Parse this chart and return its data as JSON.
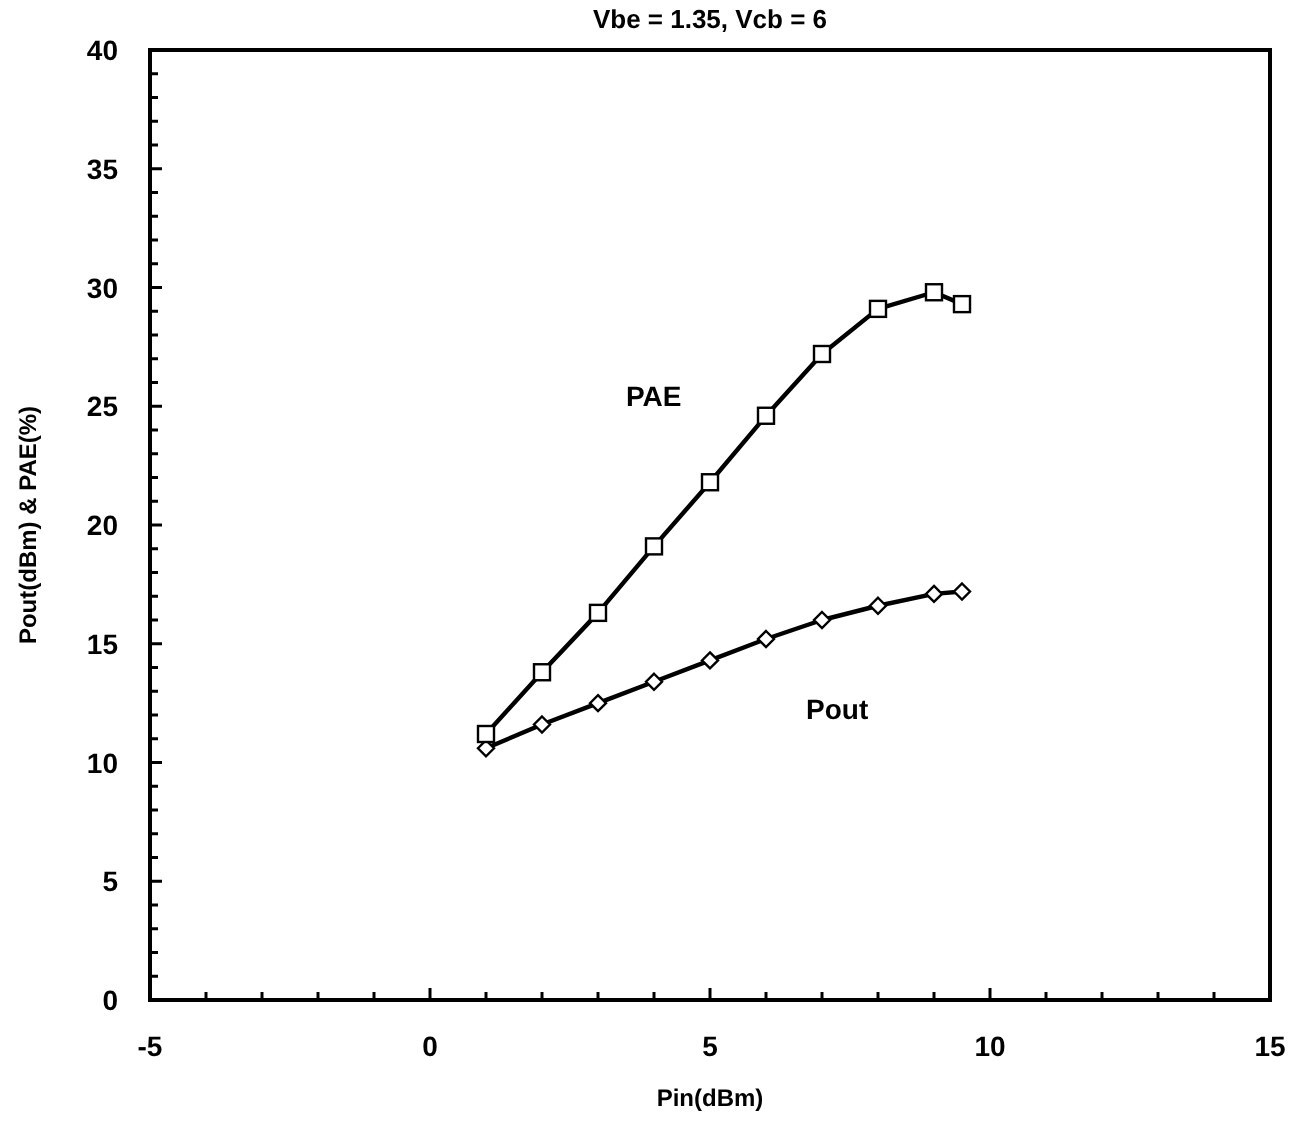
{
  "chart_data": {
    "type": "line",
    "title": "Vbe = 1.35,  Vcb = 6",
    "xlabel": "Pin(dBm)",
    "ylabel": "Pout(dBm) & PAE(%)",
    "xlim": [
      -5,
      15
    ],
    "ylim": [
      0,
      40
    ],
    "xticks": [
      -5,
      {
        "value": -4,
        "label": null
      },
      {
        "value": -3,
        "label": null
      },
      {
        "value": -2,
        "label": null
      },
      {
        "value": -1,
        "label": null
      },
      0,
      {
        "value": 1,
        "label": null
      },
      {
        "value": 2,
        "label": null
      },
      {
        "value": 3,
        "label": null
      },
      {
        "value": 4,
        "label": null
      },
      5,
      {
        "value": 6,
        "label": null
      },
      {
        "value": 7,
        "label": null
      },
      {
        "value": 8,
        "label": null
      },
      {
        "value": 9,
        "label": null
      },
      10,
      {
        "value": 11,
        "label": null
      },
      {
        "value": 12,
        "label": null
      },
      {
        "value": 13,
        "label": null
      },
      {
        "value": 14,
        "label": null
      },
      15
    ],
    "yticks": [
      0,
      {
        "value": 1,
        "label": null
      },
      {
        "value": 2,
        "label": null
      },
      {
        "value": 3,
        "label": null
      },
      {
        "value": 4,
        "label": null
      },
      5,
      {
        "value": 6,
        "label": null
      },
      {
        "value": 7,
        "label": null
      },
      {
        "value": 8,
        "label": null
      },
      {
        "value": 9,
        "label": null
      },
      10,
      {
        "value": 11,
        "label": null
      },
      {
        "value": 12,
        "label": null
      },
      {
        "value": 13,
        "label": null
      },
      {
        "value": 14,
        "label": null
      },
      15,
      {
        "value": 16,
        "label": null
      },
      {
        "value": 17,
        "label": null
      },
      {
        "value": 18,
        "label": null
      },
      {
        "value": 19,
        "label": null
      },
      20,
      {
        "value": 21,
        "label": null
      },
      {
        "value": 22,
        "label": null
      },
      {
        "value": 23,
        "label": null
      },
      {
        "value": 24,
        "label": null
      },
      25,
      {
        "value": 26,
        "label": null
      },
      {
        "value": 27,
        "label": null
      },
      {
        "value": 28,
        "label": null
      },
      {
        "value": 29,
        "label": null
      },
      30,
      {
        "value": 31,
        "label": null
      },
      {
        "value": 32,
        "label": null
      },
      {
        "value": 33,
        "label": null
      },
      {
        "value": 34,
        "label": null
      },
      35,
      {
        "value": 36,
        "label": null
      },
      {
        "value": 37,
        "label": null
      },
      {
        "value": 38,
        "label": null
      },
      {
        "value": 39,
        "label": null
      },
      40
    ],
    "grid": false,
    "line_style": "solid",
    "series": [
      {
        "name": "PAE",
        "color": "#000000",
        "marker": "square",
        "x": [
          1,
          2,
          3,
          4,
          5,
          6,
          7,
          8,
          9,
          9.5
        ],
        "values": [
          11.2,
          13.8,
          16.3,
          19.1,
          21.8,
          24.6,
          27.2,
          29.1,
          29.8,
          29.3
        ]
      },
      {
        "name": "Pout",
        "color": "#000000",
        "marker": "diamond",
        "x": [
          1,
          2,
          3,
          4,
          5,
          6,
          7,
          8,
          9,
          9.5
        ],
        "values": [
          10.6,
          11.6,
          12.5,
          13.4,
          14.3,
          15.2,
          16.0,
          16.6,
          17.1,
          17.2
        ]
      }
    ]
  }
}
